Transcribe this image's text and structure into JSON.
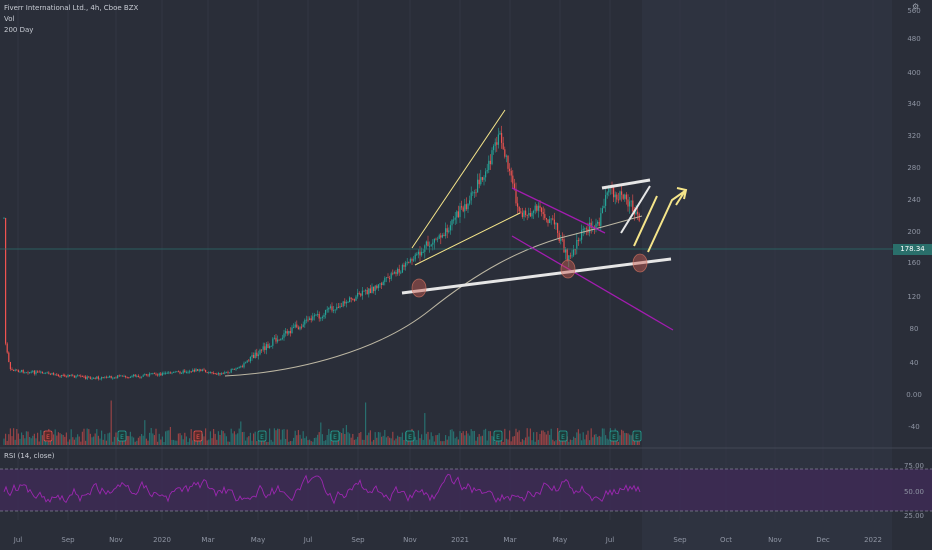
{
  "header": {
    "symbol_line": "Fiverr International Ltd., 4h, Cboe BZX",
    "vol_label": "Vol",
    "ma_label": "200 Day",
    "rsi_label": "RSI (14, close)"
  },
  "price_tag": "178.34",
  "colors": {
    "bg": "#2a2e39",
    "bg_future": "#2e3340",
    "up": "#26a69a",
    "down": "#ef5350",
    "ma": "#bdb7a3",
    "trend_white": "#e6e6e6",
    "trend_yellow": "#f5e58a",
    "trend_purple": "#a21caf",
    "rsi": "#9c27b0",
    "rsi_band": "#3d2a55",
    "price_line": "#2a6f6b"
  },
  "icons": [
    "gear-icon",
    "earnings-marker-icon",
    "dividend-marker-icon"
  ],
  "chart_data": {
    "type": "candlestick",
    "y_axis": {
      "labels": [
        "560",
        "480",
        "400",
        "340",
        "320",
        "280",
        "240",
        "200",
        "160",
        "120",
        "80",
        "40",
        "0.00",
        "-40"
      ]
    },
    "x_axis": {
      "labels": [
        "Jul",
        "Sep",
        "Nov",
        "2020",
        "Mar",
        "May",
        "Jul",
        "Sep",
        "Nov",
        "2021",
        "Mar",
        "May",
        "Jul",
        "Sep",
        "Oct",
        "Nov",
        "Dec",
        "2022"
      ]
    },
    "event_markers": [
      {
        "type": "dividend",
        "label": "E",
        "color": "red",
        "period": "Sep 2019"
      },
      {
        "type": "dividend",
        "label": "E",
        "color": "red",
        "period": "Feb 2020"
      },
      {
        "type": "earnings",
        "label": "E",
        "period": "Nov 2019"
      },
      {
        "type": "earnings",
        "label": "E",
        "period": "May 2020"
      },
      {
        "type": "earnings",
        "label": "E",
        "period": "Aug 2020"
      },
      {
        "type": "earnings",
        "label": "E",
        "period": "Nov 2020"
      },
      {
        "type": "earnings",
        "label": "E",
        "period": "Feb 2021"
      },
      {
        "type": "earnings",
        "label": "E",
        "period": "May 2021"
      },
      {
        "type": "earnings",
        "label": "E",
        "period": "Jul 2021"
      },
      {
        "type": "earnings",
        "label": "E",
        "period": "Aug 2021"
      }
    ],
    "rsi_levels": {
      "labels": [
        "75.00",
        "50.00",
        "25.00"
      ]
    },
    "last_price": 178.34
  }
}
